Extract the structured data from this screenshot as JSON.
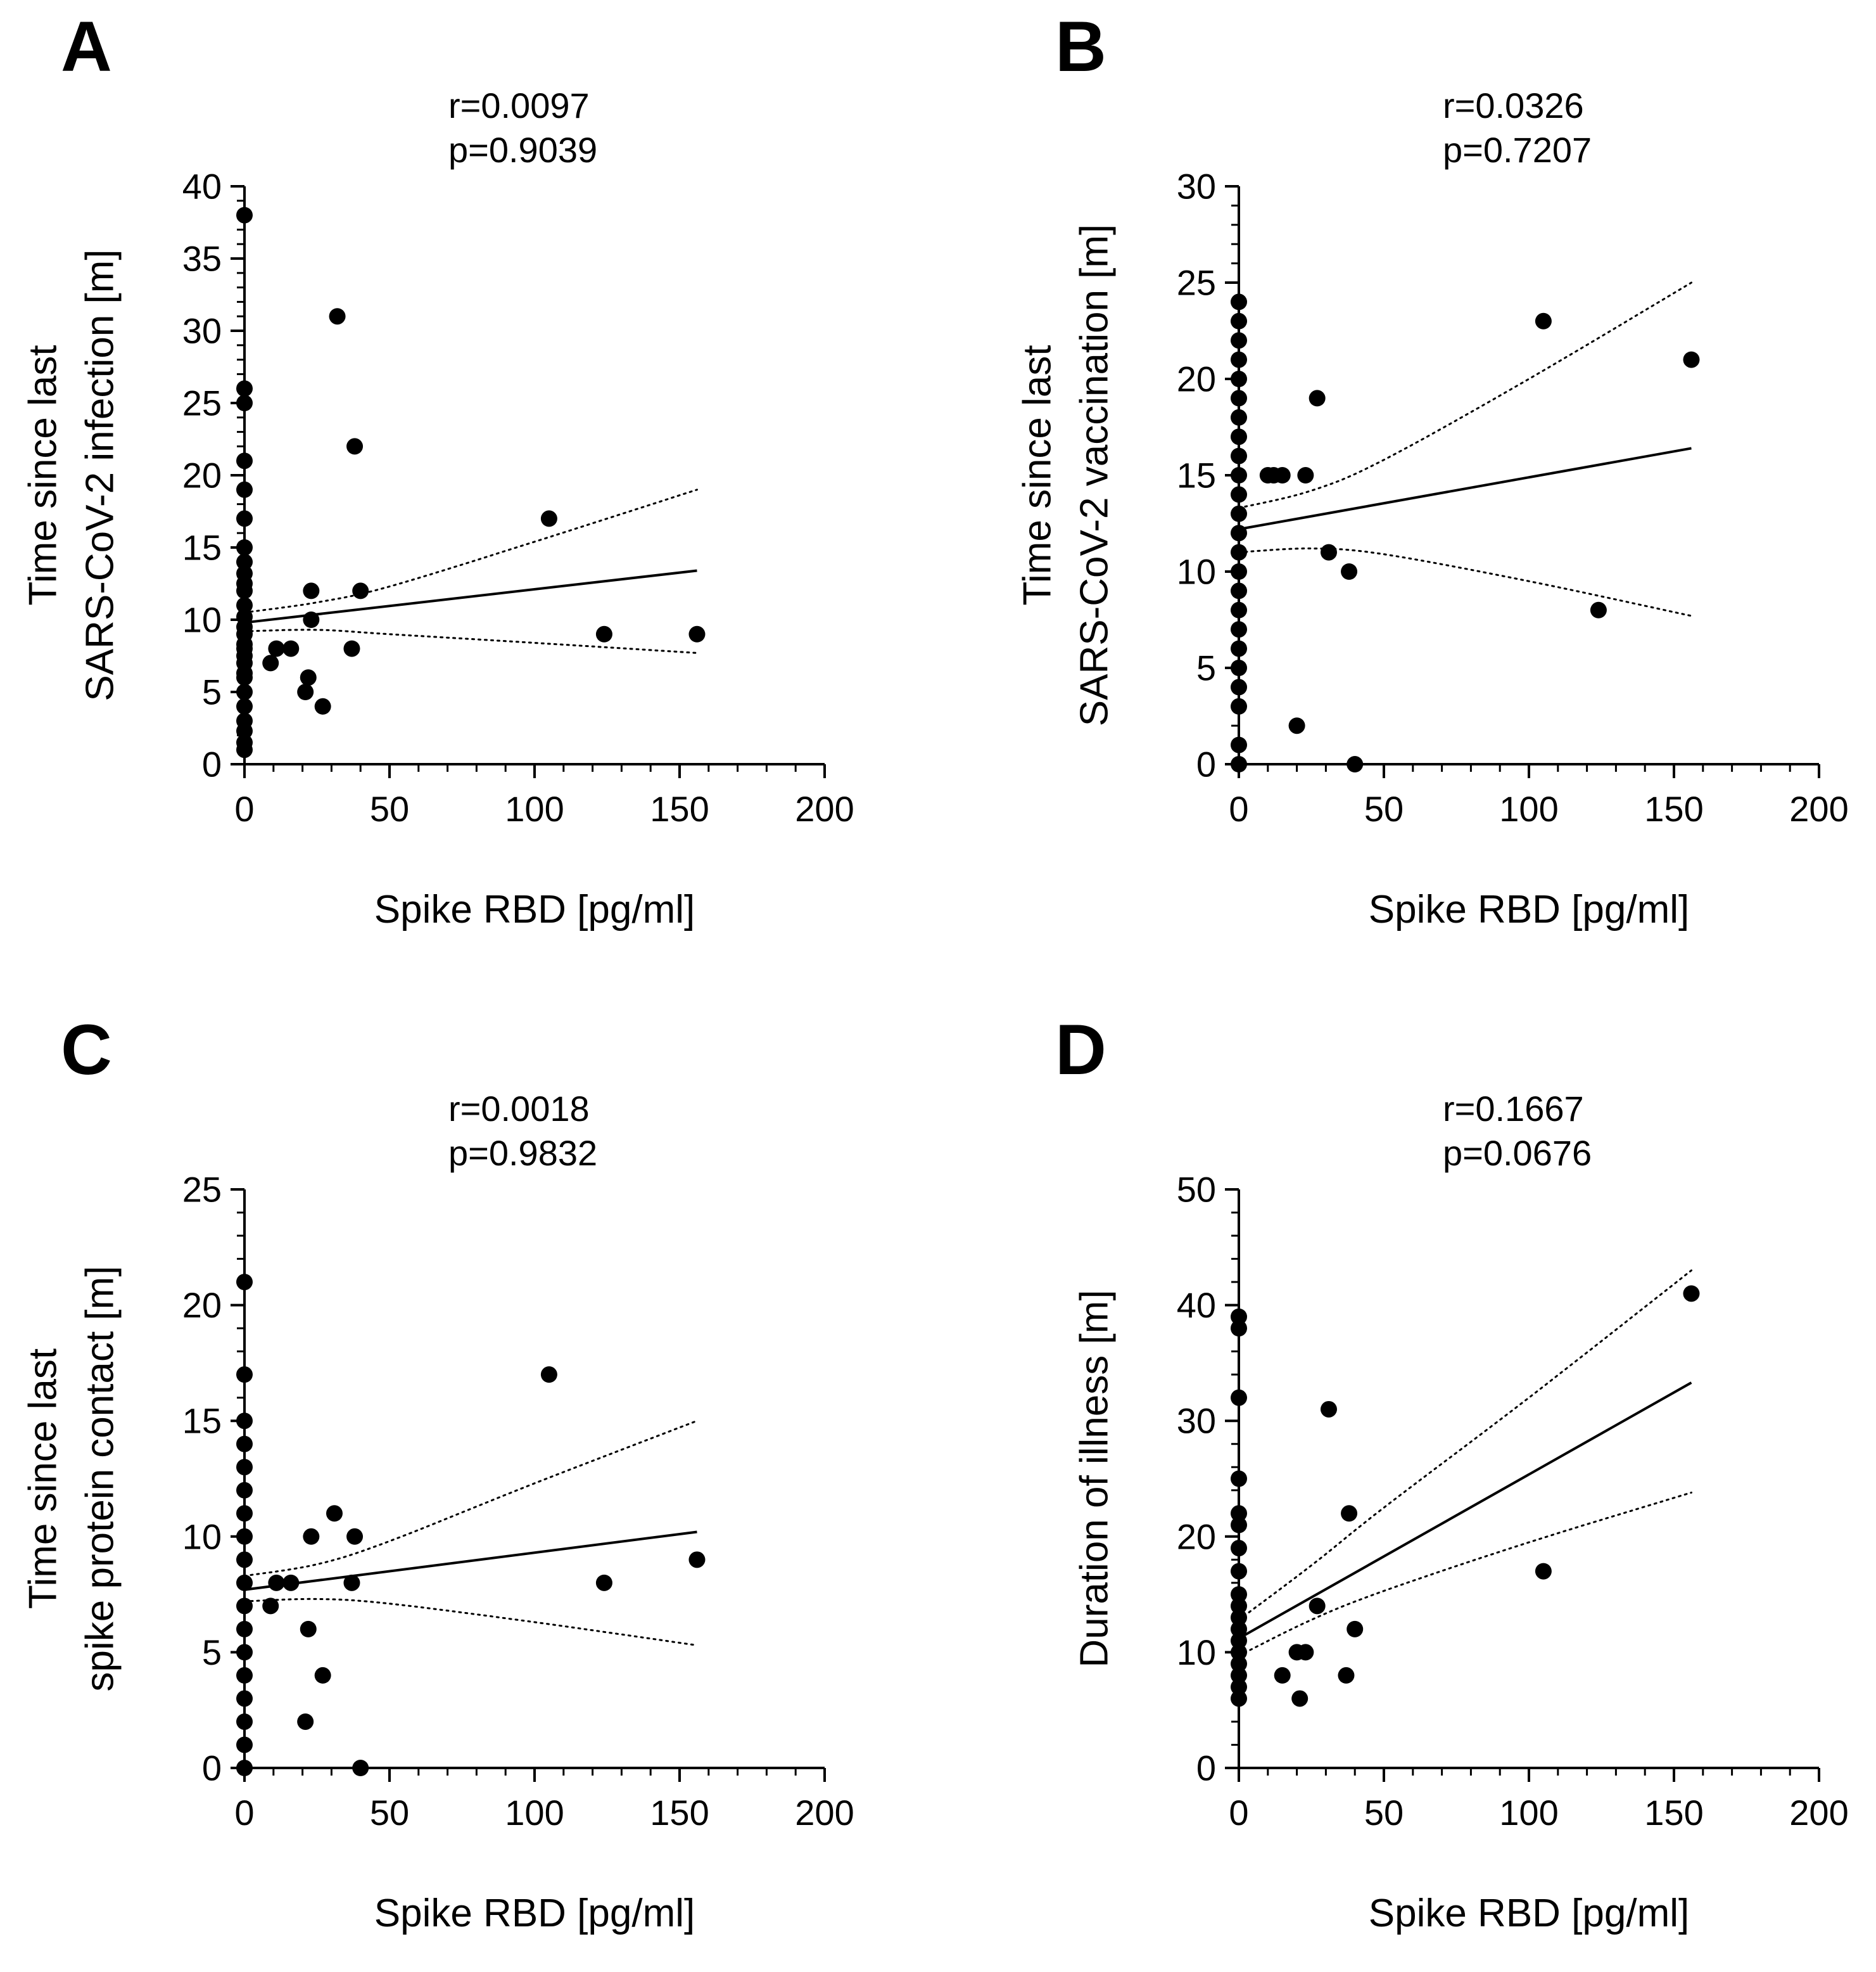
{
  "colors": {
    "ink": "#000000",
    "background": "#ffffff"
  },
  "chart_data": [
    {
      "id": "A",
      "type": "scatter",
      "panel_label": "A",
      "stat_r": "r=0.0097",
      "stat_p": "p=0.9039",
      "xlabel": "Spike RBD [pg/ml]",
      "ylabel_lines": [
        "Time since last",
        "SARS-CoV-2 infection [m]"
      ],
      "xlim": [
        0,
        200
      ],
      "ylim": [
        0,
        40
      ],
      "xticks": [
        0,
        50,
        100,
        150,
        200
      ],
      "yticks": [
        0,
        5,
        10,
        15,
        20,
        25,
        30,
        35,
        40
      ],
      "yminor": 1,
      "grid": false,
      "points": [
        [
          0,
          38
        ],
        [
          0,
          26
        ],
        [
          0,
          25
        ],
        [
          0,
          21
        ],
        [
          0,
          19
        ],
        [
          0,
          17
        ],
        [
          0,
          15
        ],
        [
          0,
          14
        ],
        [
          0,
          13.2
        ],
        [
          0,
          12.5
        ],
        [
          0,
          12
        ],
        [
          0,
          11
        ],
        [
          0,
          10.2
        ],
        [
          0,
          9.5
        ],
        [
          0,
          9
        ],
        [
          0,
          8.3
        ],
        [
          0,
          8
        ],
        [
          0,
          7.5
        ],
        [
          0,
          7
        ],
        [
          0,
          6.3
        ],
        [
          0,
          6
        ],
        [
          0,
          5
        ],
        [
          0,
          4
        ],
        [
          0,
          3
        ],
        [
          0,
          2.3
        ],
        [
          0,
          1.5
        ],
        [
          0,
          1
        ],
        [
          9,
          7
        ],
        [
          11,
          8
        ],
        [
          16,
          8
        ],
        [
          21,
          5
        ],
        [
          22,
          6
        ],
        [
          23,
          12
        ],
        [
          23,
          10
        ],
        [
          27,
          4
        ],
        [
          32,
          31
        ],
        [
          37,
          8
        ],
        [
          38,
          22
        ],
        [
          40,
          12
        ],
        [
          105,
          17
        ],
        [
          124,
          9
        ],
        [
          156,
          9
        ]
      ],
      "fit_line": [
        [
          0,
          9.8
        ],
        [
          156,
          13.4
        ]
      ],
      "ci_upper": [
        [
          0,
          10.5
        ],
        [
          25,
          11.2
        ],
        [
          50,
          12.3
        ],
        [
          100,
          15.4
        ],
        [
          156,
          19.0
        ]
      ],
      "ci_lower": [
        [
          0,
          9.2
        ],
        [
          25,
          9.3
        ],
        [
          50,
          9.0
        ],
        [
          100,
          8.4
        ],
        [
          156,
          7.7
        ]
      ]
    },
    {
      "id": "B",
      "type": "scatter",
      "panel_label": "B",
      "stat_r": "r=0.0326",
      "stat_p": "p=0.7207",
      "xlabel": "Spike RBD [pg/ml]",
      "ylabel_lines": [
        "Time since last",
        "SARS-CoV-2 vaccination [m]"
      ],
      "xlim": [
        0,
        200
      ],
      "ylim": [
        0,
        30
      ],
      "xticks": [
        0,
        50,
        100,
        150,
        200
      ],
      "yticks": [
        0,
        5,
        10,
        15,
        20,
        25,
        30
      ],
      "yminor": 1,
      "grid": false,
      "points": [
        [
          0,
          24
        ],
        [
          0,
          23
        ],
        [
          0,
          22
        ],
        [
          0,
          21
        ],
        [
          0,
          20
        ],
        [
          0,
          19
        ],
        [
          0,
          18
        ],
        [
          0,
          17
        ],
        [
          0,
          16
        ],
        [
          0,
          15
        ],
        [
          0,
          14
        ],
        [
          0,
          13
        ],
        [
          0,
          12
        ],
        [
          0,
          11
        ],
        [
          0,
          10
        ],
        [
          0,
          9
        ],
        [
          0,
          8
        ],
        [
          0,
          7
        ],
        [
          0,
          6
        ],
        [
          0,
          5
        ],
        [
          0,
          4
        ],
        [
          0,
          3
        ],
        [
          0,
          1
        ],
        [
          0,
          0
        ],
        [
          10,
          15
        ],
        [
          12,
          15
        ],
        [
          15,
          15
        ],
        [
          20,
          2
        ],
        [
          23,
          15
        ],
        [
          27,
          19
        ],
        [
          31,
          11
        ],
        [
          38,
          10
        ],
        [
          40,
          0
        ],
        [
          105,
          23
        ],
        [
          124,
          8
        ],
        [
          156,
          21
        ]
      ],
      "fit_line": [
        [
          0,
          12.2
        ],
        [
          156,
          16.4
        ]
      ],
      "ci_upper": [
        [
          0,
          13.3
        ],
        [
          25,
          14.2
        ],
        [
          50,
          15.8
        ],
        [
          100,
          20.0
        ],
        [
          156,
          25.0
        ]
      ],
      "ci_lower": [
        [
          0,
          11.0
        ],
        [
          25,
          11.2
        ],
        [
          50,
          10.9
        ],
        [
          100,
          9.5
        ],
        [
          156,
          7.7
        ]
      ]
    },
    {
      "id": "C",
      "type": "scatter",
      "panel_label": "C",
      "stat_r": "r=0.0018",
      "stat_p": "p=0.9832",
      "xlabel": "Spike RBD [pg/ml]",
      "ylabel_lines": [
        "Time since last",
        "spike protein contact [m]"
      ],
      "xlim": [
        0,
        200
      ],
      "ylim": [
        0,
        25
      ],
      "xticks": [
        0,
        50,
        100,
        150,
        200
      ],
      "yticks": [
        0,
        5,
        10,
        15,
        20,
        25
      ],
      "yminor": 1,
      "grid": false,
      "points": [
        [
          0,
          21
        ],
        [
          0,
          17
        ],
        [
          0,
          15
        ],
        [
          0,
          14
        ],
        [
          0,
          13
        ],
        [
          0,
          12
        ],
        [
          0,
          11
        ],
        [
          0,
          10
        ],
        [
          0,
          9
        ],
        [
          0,
          8
        ],
        [
          0,
          7
        ],
        [
          0,
          6
        ],
        [
          0,
          5
        ],
        [
          0,
          4
        ],
        [
          0,
          3
        ],
        [
          0,
          2
        ],
        [
          0,
          1
        ],
        [
          0,
          0
        ],
        [
          9,
          7
        ],
        [
          11,
          8
        ],
        [
          16,
          8
        ],
        [
          21,
          2
        ],
        [
          22,
          6
        ],
        [
          23,
          10
        ],
        [
          27,
          4
        ],
        [
          31,
          11
        ],
        [
          37,
          8
        ],
        [
          38,
          10
        ],
        [
          40,
          0
        ],
        [
          105,
          17
        ],
        [
          124,
          8
        ],
        [
          156,
          9
        ]
      ],
      "fit_line": [
        [
          0,
          7.7
        ],
        [
          156,
          10.2
        ]
      ],
      "ci_upper": [
        [
          0,
          8.3
        ],
        [
          25,
          8.8
        ],
        [
          50,
          9.8
        ],
        [
          100,
          12.3
        ],
        [
          156,
          15.0
        ]
      ],
      "ci_lower": [
        [
          0,
          7.2
        ],
        [
          25,
          7.3
        ],
        [
          50,
          7.1
        ],
        [
          100,
          6.3
        ],
        [
          156,
          5.3
        ]
      ]
    },
    {
      "id": "D",
      "type": "scatter",
      "panel_label": "D",
      "stat_r": "r=0.1667",
      "stat_p": "p=0.0676",
      "xlabel": "Spike RBD [pg/ml]",
      "ylabel_lines": [
        "Duration of illness [m]"
      ],
      "xlim": [
        0,
        200
      ],
      "ylim": [
        0,
        50
      ],
      "xticks": [
        0,
        50,
        100,
        150,
        200
      ],
      "yticks": [
        0,
        10,
        20,
        30,
        40,
        50
      ],
      "yminor": 2,
      "grid": false,
      "points": [
        [
          0,
          39
        ],
        [
          0,
          38
        ],
        [
          0,
          32
        ],
        [
          0,
          25
        ],
        [
          0,
          22
        ],
        [
          0,
          21
        ],
        [
          0,
          19
        ],
        [
          0,
          17
        ],
        [
          0,
          15
        ],
        [
          0,
          14
        ],
        [
          0,
          13
        ],
        [
          0,
          12
        ],
        [
          0,
          11
        ],
        [
          0,
          10
        ],
        [
          0,
          9
        ],
        [
          0,
          8
        ],
        [
          0,
          7
        ],
        [
          0,
          6
        ],
        [
          15,
          8
        ],
        [
          20,
          10
        ],
        [
          21,
          6
        ],
        [
          23,
          10
        ],
        [
          27,
          14
        ],
        [
          31,
          31
        ],
        [
          37,
          8
        ],
        [
          38,
          22
        ],
        [
          40,
          12
        ],
        [
          105,
          17
        ],
        [
          156,
          41
        ]
      ],
      "fit_line": [
        [
          0,
          11.2
        ],
        [
          156,
          33.3
        ]
      ],
      "ci_upper": [
        [
          0,
          12.8
        ],
        [
          25,
          17.5
        ],
        [
          50,
          22.5
        ],
        [
          100,
          32.0
        ],
        [
          156,
          43.0
        ]
      ],
      "ci_lower": [
        [
          0,
          9.7
        ],
        [
          25,
          12.8
        ],
        [
          50,
          15.3
        ],
        [
          100,
          19.5
        ],
        [
          156,
          23.8
        ]
      ]
    }
  ]
}
